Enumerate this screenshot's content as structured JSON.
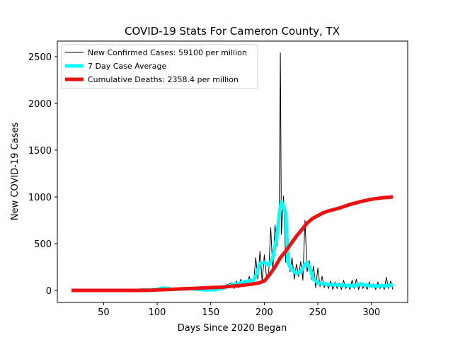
{
  "chart_data": {
    "type": "line",
    "title": "COVID-19 Stats For Cameron County, TX",
    "xlabel": "Days Since 2020 Began",
    "ylabel": "New COVID-19 Cases",
    "xlim": [
      0,
      340
    ],
    "ylim": [
      -120,
      2650
    ],
    "xticks": [
      50,
      100,
      150,
      200,
      250,
      300
    ],
    "yticks": [
      0,
      500,
      1000,
      1500,
      2000,
      2500
    ],
    "grid": false,
    "legend_position": "top-left",
    "series": [
      {
        "name": "New Confirmed Cases: 59100 per million",
        "color": "#000000",
        "linewidth": 1,
        "x": [
          20,
          100,
          110,
          120,
          130,
          140,
          150,
          160,
          165,
          170,
          172,
          174,
          176,
          178,
          180,
          182,
          184,
          186,
          188,
          190,
          192,
          194,
          196,
          198,
          200,
          202,
          204,
          206,
          208,
          210,
          212,
          214,
          215,
          216,
          218,
          220,
          222,
          224,
          226,
          228,
          230,
          232,
          234,
          236,
          238,
          240,
          242,
          244,
          246,
          248,
          250,
          252,
          254,
          256,
          258,
          260,
          262,
          264,
          266,
          268,
          270,
          272,
          274,
          276,
          278,
          280,
          282,
          284,
          286,
          288,
          290,
          292,
          294,
          296,
          298,
          300,
          302,
          304,
          306,
          308,
          310,
          312,
          314,
          316,
          318,
          320
        ],
        "y": [
          0,
          20,
          10,
          20,
          25,
          15,
          30,
          40,
          60,
          80,
          20,
          100,
          30,
          120,
          40,
          90,
          60,
          150,
          50,
          80,
          350,
          120,
          420,
          90,
          380,
          150,
          180,
          670,
          200,
          700,
          480,
          900,
          2540,
          600,
          1010,
          300,
          600,
          200,
          350,
          120,
          280,
          150,
          310,
          110,
          750,
          200,
          320,
          120,
          260,
          30,
          240,
          40,
          150,
          30,
          80,
          20,
          100,
          10,
          90,
          20,
          80,
          10,
          110,
          20,
          60,
          10,
          110,
          20,
          120,
          10,
          80,
          20,
          60,
          10,
          90,
          30,
          70,
          10,
          90,
          20,
          60,
          10,
          140,
          20,
          100,
          10
        ]
      },
      {
        "name": "7 Day Case Average",
        "color": "#00ffff",
        "linewidth": 5,
        "x": [
          20,
          80,
          95,
          100,
          105,
          110,
          115,
          120,
          125,
          130,
          135,
          140,
          145,
          150,
          155,
          160,
          165,
          170,
          175,
          180,
          185,
          190,
          193,
          196,
          200,
          204,
          208,
          212,
          214,
          216,
          218,
          220,
          222,
          224,
          226,
          230,
          234,
          238,
          240,
          242,
          246,
          250,
          255,
          260,
          265,
          270,
          275,
          280,
          285,
          290,
          295,
          300,
          305,
          310,
          315,
          320
        ],
        "y": [
          0,
          0,
          5,
          10,
          25,
          20,
          10,
          15,
          15,
          20,
          15,
          10,
          5,
          5,
          10,
          20,
          40,
          60,
          70,
          90,
          100,
          110,
          180,
          290,
          300,
          270,
          350,
          600,
          820,
          950,
          900,
          820,
          300,
          250,
          220,
          180,
          200,
          280,
          300,
          250,
          120,
          80,
          70,
          65,
          60,
          60,
          55,
          50,
          50,
          70,
          55,
          50,
          45,
          50,
          50,
          60
        ]
      },
      {
        "name": "Cumulative Deaths: 2358.4 per million",
        "color": "#ee1111",
        "linewidth": 5,
        "x": [
          20,
          60,
          80,
          95,
          100,
          110,
          120,
          130,
          140,
          150,
          160,
          170,
          180,
          190,
          195,
          200,
          205,
          210,
          215,
          220,
          225,
          230,
          235,
          240,
          245,
          250,
          255,
          260,
          270,
          280,
          290,
          300,
          310,
          320
        ],
        "y": [
          0,
          0,
          0,
          2,
          5,
          10,
          15,
          20,
          25,
          30,
          35,
          45,
          55,
          70,
          80,
          100,
          170,
          250,
          350,
          420,
          500,
          580,
          650,
          720,
          770,
          800,
          830,
          850,
          880,
          920,
          950,
          975,
          990,
          1000
        ]
      }
    ]
  }
}
